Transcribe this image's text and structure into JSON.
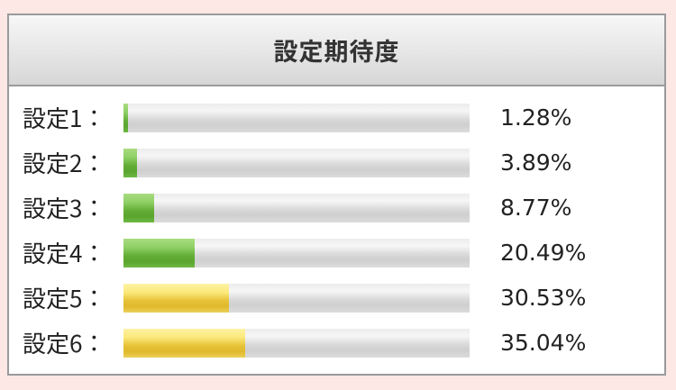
{
  "panel": {
    "title": "設定期待度"
  },
  "rows": [
    {
      "label": "設定1：",
      "value": 1.28,
      "display": "1.28%",
      "color": "green"
    },
    {
      "label": "設定2：",
      "value": 3.89,
      "display": "3.89%",
      "color": "green"
    },
    {
      "label": "設定3：",
      "value": 8.77,
      "display": "8.77%",
      "color": "green"
    },
    {
      "label": "設定4：",
      "value": 20.49,
      "display": "20.49%",
      "color": "green"
    },
    {
      "label": "設定5：",
      "value": 30.53,
      "display": "30.53%",
      "color": "gold"
    },
    {
      "label": "設定6：",
      "value": 35.04,
      "display": "35.04%",
      "color": "gold"
    }
  ],
  "colors": {
    "background": "#fde8e6",
    "green": "#63ad36",
    "gold": "#e6c136",
    "track": "#d9d9d9"
  }
}
